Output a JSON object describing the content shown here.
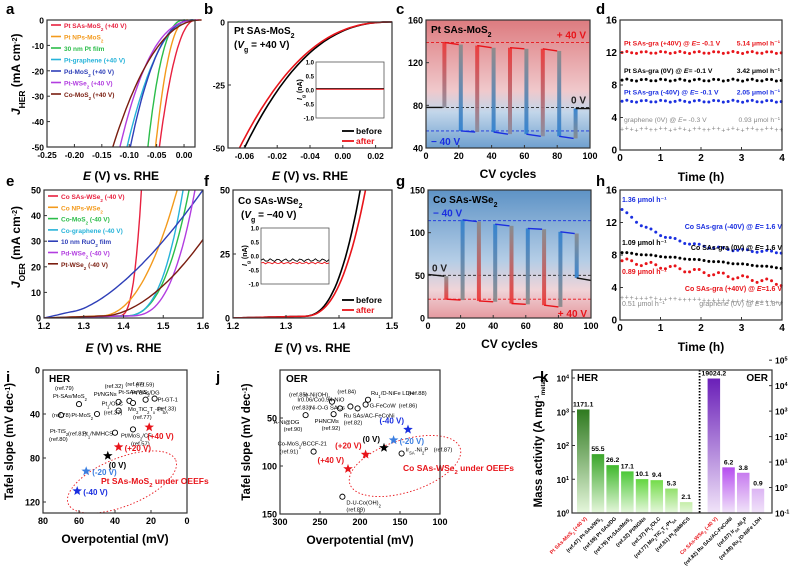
{
  "chart_data": [
    {
      "id": "a",
      "panel_letter": "a",
      "type": "line",
      "title": "",
      "xlabel": "E (V) vs. RHE",
      "ylabel": "J_HER (mA cm^-2)",
      "xlim": [
        -0.25,
        0.02
      ],
      "ylim": [
        -50,
        0
      ],
      "xticks": [
        -0.25,
        -0.2,
        -0.15,
        -0.1,
        -0.05,
        0.0
      ],
      "xtick_labels": [
        "-0.25",
        "-0.20",
        "-0.15",
        "-0.10",
        "-0.05",
        "0.00"
      ],
      "yticks": [
        0,
        -10,
        -20,
        -30,
        -40,
        -50
      ],
      "ytick_labels": [
        "0",
        "-10",
        "-20",
        "-30",
        "-40",
        "-50"
      ],
      "legend_position": "top-left",
      "series": [
        {
          "name": "Pt SAs-MoS2 (+40 V)",
          "color": "#e8213f",
          "onset": 0.01,
          "at_minus50": -0.045
        },
        {
          "name": "Pt NPs-MoS2",
          "color": "#f39a1c",
          "onset": -0.005,
          "at_minus50": -0.052
        },
        {
          "name": "30 nm Pt film",
          "color": "#2bbd4a",
          "onset": -0.01,
          "at_minus50": -0.066
        },
        {
          "name": "Pt-graphene (+40 V)",
          "color": "#26b3d9",
          "onset": 0.005,
          "at_minus50": -0.104
        },
        {
          "name": "Pd-MoS2 (+40 V)",
          "color": "#2e3fb8",
          "onset": 0.005,
          "at_minus50": -0.098
        },
        {
          "name": "Pt-WSe2 (+40 V)",
          "color": "#b23de0",
          "onset": 0.015,
          "at_minus50": -0.117
        },
        {
          "name": "Co-MoS2 (+40 V)",
          "color": "#7a1d0f",
          "onset": 0.02,
          "at_minus50": -0.13
        }
      ]
    },
    {
      "id": "b",
      "panel_letter": "b",
      "type": "line",
      "title": "Pt SAs-MoS2 (Vg = +40 V)",
      "title_line1": "Pt SAs-MoS2",
      "title_line2": "(Vg = +40 V)",
      "xlabel": "E (V) vs. RHE",
      "ylabel": "",
      "xlim": [
        -0.07,
        0.03
      ],
      "ylim": [
        -50,
        0
      ],
      "xtick_labels": [
        "-0.06",
        "-0.02",
        "-0.04",
        "0.00",
        "0.02"
      ],
      "ytick_labels": [
        "0",
        "-25",
        "-50"
      ],
      "series": [
        {
          "name": "before",
          "color": "#000000",
          "x_at_minus50": -0.06
        },
        {
          "name": "after",
          "color": "#e8141a",
          "x_at_minus50": -0.063
        }
      ],
      "inset": {
        "ylabel": "Ig (nA)",
        "ylim": [
          -1.0,
          1.0
        ],
        "ytick_labels": [
          "1.0",
          "0.5",
          "0.0",
          "-0.5",
          "-1.0"
        ],
        "before_level": 0.05,
        "after_level": 0.05
      },
      "legend_position": "bottom-right"
    },
    {
      "id": "c",
      "panel_letter": "c",
      "type": "line",
      "title": "Pt SAs-MoS2",
      "xlabel": "CV cycles",
      "ylabel": "",
      "xlim": [
        0,
        100
      ],
      "ylim": [
        40,
        160
      ],
      "xtick_labels": [
        "0",
        "20",
        "40",
        "60",
        "80",
        "100"
      ],
      "ytick_labels": [
        "40",
        "80",
        "120",
        "160"
      ],
      "reference_lines": [
        {
          "label": "+ 40 V",
          "value": 139,
          "color": "#e8141a"
        },
        {
          "label": "0 V",
          "value": 78,
          "color": "#222222"
        },
        {
          "label": "− 40 V",
          "value": 56,
          "color": "#1a2fe0"
        }
      ],
      "segments": [
        {
          "x0": 0,
          "x1": 10,
          "y0": 78,
          "y1": 78,
          "state": "0V"
        },
        {
          "x0": 10,
          "x1": 20,
          "y0": 139,
          "y1": 137,
          "state": "+40V"
        },
        {
          "x0": 20,
          "x1": 30,
          "y0": 56,
          "y1": 55,
          "state": "-40V"
        },
        {
          "x0": 30,
          "x1": 40,
          "y0": 136,
          "y1": 134,
          "state": "+40V"
        },
        {
          "x0": 40,
          "x1": 50,
          "y0": 55,
          "y1": 53,
          "state": "-40V"
        },
        {
          "x0": 50,
          "x1": 60,
          "y0": 134,
          "y1": 133,
          "state": "+40V"
        },
        {
          "x0": 60,
          "x1": 70,
          "y0": 53,
          "y1": 51,
          "state": "-40V"
        },
        {
          "x0": 70,
          "x1": 80,
          "y0": 133,
          "y1": 131,
          "state": "+40V"
        },
        {
          "x0": 80,
          "x1": 90,
          "y0": 51,
          "y1": 49,
          "state": "-40V"
        },
        {
          "x0": 90,
          "x1": 100,
          "y0": 77,
          "y1": 77,
          "state": "0V"
        }
      ]
    },
    {
      "id": "d",
      "panel_letter": "d",
      "type": "scatter",
      "xlabel": "Time (h)",
      "ylabel": "",
      "xlim": [
        0,
        4
      ],
      "ylim": [
        0,
        16
      ],
      "xtick_labels": [
        "0",
        "1",
        "2",
        "3",
        "4"
      ],
      "ytick_labels": [
        "0",
        "4",
        "8",
        "12",
        "16"
      ],
      "series": [
        {
          "name": "Pt SAs-gra (+40V) @ E= -0.1 V",
          "rate": "5.14 μmol h⁻¹",
          "color": "#e8141a",
          "level": 12.0
        },
        {
          "name": "Pt SAs-gra (0V) @ E= -0.1 V",
          "rate": "3.42 μmol h⁻¹",
          "color": "#000000",
          "level": 8.6
        },
        {
          "name": "Pt SAs-gra (-40V) @ E= -0.1 V",
          "rate": "2.05 μmol h⁻¹",
          "color": "#1a2fe0",
          "level": 6.0
        },
        {
          "name": "graphene (0V) @ E= -0.3 V",
          "rate": "0.93 μmol h⁻¹",
          "color": "#888888",
          "level": 2.6
        }
      ]
    },
    {
      "id": "e",
      "panel_letter": "e",
      "type": "line",
      "xlabel": "E (V) vs. RHE",
      "ylabel": "J_OER (mA cm^-2)",
      "xlim": [
        1.2,
        1.6
      ],
      "ylim": [
        0,
        50
      ],
      "xtick_labels": [
        "1.2",
        "1.3",
        "1.4",
        "1.5",
        "1.6"
      ],
      "ytick_labels": [
        "0",
        "10",
        "20",
        "30",
        "40",
        "50"
      ],
      "legend_position": "top-left",
      "series": [
        {
          "name": "Co SAs-WSe2 (-40 V)",
          "color": "#e8213f",
          "x_at_50": 1.445
        },
        {
          "name": "Co NPs-WSe2",
          "color": "#f39a1c",
          "x_at_50": 1.535
        },
        {
          "name": "Co-MoS2 (-40 V)",
          "color": "#2bbd4a",
          "x_at_50": 1.565
        },
        {
          "name": "Co-graphene (-40 V)",
          "color": "#26b3d9",
          "x_at_50": 1.55
        },
        {
          "name": "10 nm RuO2 film",
          "color": "#2e3fb8",
          "x_at_50": 1.6
        },
        {
          "name": "Pd-WSe2 (-40 V)",
          "color": "#b23de0",
          "x_at_50": 1.58
        },
        {
          "name": "Pt-WSe2 (-40 V)",
          "color": "#7a1d0f",
          "x_at_50": 1.68
        }
      ]
    },
    {
      "id": "f",
      "panel_letter": "f",
      "type": "line",
      "title": "Co SAs-WSe2 (Vg = −40 V)",
      "title_line1": "Co SAs-WSe2",
      "title_line2": "(Vg = −40 V)",
      "xlabel": "E (V) vs. RHE",
      "ylabel": "",
      "xlim": [
        1.2,
        1.5
      ],
      "ylim": [
        0,
        50
      ],
      "xtick_labels": [
        "1.2",
        "1.3",
        "1.4",
        "1.5"
      ],
      "ytick_labels": [
        "0",
        "25",
        "50"
      ],
      "series": [
        {
          "name": "before",
          "color": "#000000",
          "x_at_50": 1.44
        },
        {
          "name": "after",
          "color": "#e8141a",
          "x_at_50": 1.45
        }
      ],
      "inset": {
        "ylabel": "Ig (nA)",
        "ylim": [
          -1.0,
          1.0
        ],
        "ytick_labels": [
          "1.0",
          "0.5",
          "0.0",
          "-0.5",
          "-1.0"
        ],
        "before_level": -0.15,
        "after_level": -0.25
      },
      "legend_position": "bottom-right"
    },
    {
      "id": "g",
      "panel_letter": "g",
      "type": "line",
      "title": "Co SAs-WSe2",
      "xlabel": "CV cycles",
      "ylabel": "",
      "xlim": [
        0,
        100
      ],
      "ylim": [
        0,
        150
      ],
      "xtick_labels": [
        "0",
        "20",
        "40",
        "60",
        "80",
        "100"
      ],
      "ytick_labels": [
        "0",
        "50",
        "100",
        "150"
      ],
      "reference_lines": [
        {
          "label": "− 40 V",
          "value": 114,
          "color": "#1a2fe0"
        },
        {
          "label": "0 V",
          "value": 50,
          "color": "#222222"
        },
        {
          "label": "+ 40 V",
          "value": 22,
          "color": "#e8141a"
        }
      ],
      "segments": [
        {
          "x0": 0,
          "x1": 10,
          "y0": 51,
          "y1": 49,
          "state": "0V"
        },
        {
          "x0": 10,
          "x1": 20,
          "y0": 22,
          "y1": 21,
          "state": "+40V"
        },
        {
          "x0": 20,
          "x1": 30,
          "y0": 115,
          "y1": 113,
          "state": "-40V"
        },
        {
          "x0": 30,
          "x1": 40,
          "y0": 20,
          "y1": 19,
          "state": "+40V"
        },
        {
          "x0": 40,
          "x1": 50,
          "y0": 110,
          "y1": 108,
          "state": "-40V"
        },
        {
          "x0": 50,
          "x1": 60,
          "y0": 17,
          "y1": 16,
          "state": "+40V"
        },
        {
          "x0": 60,
          "x1": 70,
          "y0": 105,
          "y1": 104,
          "state": "-40V"
        },
        {
          "x0": 70,
          "x1": 80,
          "y0": 15,
          "y1": 13,
          "state": "+40V"
        },
        {
          "x0": 80,
          "x1": 90,
          "y0": 101,
          "y1": 99,
          "state": "-40V"
        },
        {
          "x0": 90,
          "x1": 100,
          "y0": 47,
          "y1": 44,
          "state": "0V"
        }
      ]
    },
    {
      "id": "h",
      "panel_letter": "h",
      "type": "scatter",
      "xlabel": "Time (h)",
      "ylabel": "",
      "xlim": [
        0,
        4
      ],
      "ylim": [
        0,
        16
      ],
      "xtick_labels": [
        "0",
        "1",
        "2",
        "3",
        "4"
      ],
      "ytick_labels": [
        "0",
        "4",
        "8",
        "12",
        "16"
      ],
      "series": [
        {
          "name": "Co SAs-gra (-40V) @ E= 1.6 V",
          "rate": "1.36 μmol h⁻¹",
          "color": "#1a2fe0",
          "start": 13.6,
          "end": 8.2
        },
        {
          "name": "Co SAs-gra (0V) @ E= 1.6 V",
          "rate": "1.09 μmol h⁻¹",
          "color": "#000000",
          "start": 8.3,
          "end": 6.4
        },
        {
          "name": "Co SAs-gra (+40V) @ E=1.6 V",
          "rate": "0.89 μmol h⁻¹",
          "color": "#e8141a",
          "start": 7.3,
          "end": 4.5
        },
        {
          "name": "graphene (0V) @ E= 1.8 V",
          "rate": "0.51 μmol h⁻¹",
          "color": "#888888",
          "start": 2.8,
          "end": 2.2
        }
      ]
    },
    {
      "id": "i",
      "panel_letter": "i",
      "type": "scatter",
      "title": "HER",
      "xlabel": "Overpotential (mV)",
      "ylabel": "Tafel slope (mV dec⁻¹)",
      "xlim": [
        80,
        0
      ],
      "ylim": [
        0,
        130
      ],
      "xtick_labels": [
        "80",
        "60",
        "40",
        "20",
        "0"
      ],
      "ytick_labels": [
        "0",
        "40",
        "80",
        "120"
      ],
      "references": [
        {
          "label": "(ref.80)",
          "name": "Pt-TiS2",
          "x": 70,
          "y": 41
        },
        {
          "label": "(ref.79)",
          "name": "Pt-SAs/MoS2",
          "x": 60,
          "y": 31
        },
        {
          "label": "(ref.78)",
          "name": "Pt-MoS2",
          "x": 50,
          "y": 40
        },
        {
          "label": "(ref.32)",
          "name": "Pt/NGNs",
          "x": 38,
          "y": 29
        },
        {
          "label": "(ref.37)",
          "name": "Pt1/OLC",
          "x": 38,
          "y": 37
        },
        {
          "label": "(ref.81)",
          "name": "Pt1/NMHCS",
          "x": 40,
          "y": 57
        },
        {
          "label": "(ref.47)",
          "name": "Pt-SAs/WS2",
          "x": 32,
          "y": 28
        },
        {
          "label": "(ref.77)",
          "name": "Mo2TiC2Tx-PtSA",
          "x": 30,
          "y": 30
        },
        {
          "label": "(ref.59)",
          "name": "Pt SAs/DG",
          "x": 23,
          "y": 27
        },
        {
          "label": "(ref.33)",
          "name": "Pt-GT-1",
          "x": 18,
          "y": 26
        },
        {
          "label": "(ref.57)",
          "name": "Pt/MoS2/CF",
          "x": 30,
          "y": 54
        }
      ],
      "this_work": [
        {
          "label": "(+40 V)",
          "x": 21,
          "y": 52,
          "color": "#e8141a"
        },
        {
          "label": "(+20 V)",
          "x": 38,
          "y": 70,
          "color": "#e8141a"
        },
        {
          "label": "(0 V)",
          "x": 44,
          "y": 78,
          "color": "#000000"
        },
        {
          "label": "(-20 V)",
          "x": 56,
          "y": 92,
          "color": "#3a7ee0"
        },
        {
          "label": "(-40 V)",
          "x": 61,
          "y": 110,
          "color": "#1a2fe0"
        }
      ],
      "annotation": "Pt SAs-MoS2 under OEEFs"
    },
    {
      "id": "j",
      "panel_letter": "j",
      "type": "scatter",
      "title": "OER",
      "xlabel": "Overpotential (mV)",
      "ylabel": "Tafel slope (mV dec⁻¹)",
      "xlim": [
        300,
        100
      ],
      "ylim": [
        0,
        150
      ],
      "xtick_labels": [
        "300",
        "250",
        "200",
        "150",
        "100"
      ],
      "ytick_labels": [
        "50",
        "100",
        "150"
      ],
      "references": [
        {
          "label": "(ref.90)",
          "name": "A-Ni@DG",
          "x": 268,
          "y": 47
        },
        {
          "label": "(ref.85)",
          "name": "w-Ni(OH)2",
          "x": 235,
          "y": 33
        },
        {
          "label": "(ref.83)",
          "name": "Ni-O-G SACs",
          "x": 225,
          "y": 40
        },
        {
          "label": "(ref.92)",
          "name": "PHNCMs",
          "x": 233,
          "y": 46
        },
        {
          "label": "(ref.84)",
          "name": "Ir0.06/Co0.94-NiO",
          "x": 212,
          "y": 38
        },
        {
          "label": "(ref.82)",
          "name": "Ru SAs/AC-FeCoNi",
          "x": 203,
          "y": 40
        },
        {
          "label": "(ref.88)",
          "name": "Ru1/D-NiFe LDH",
          "x": 190,
          "y": 31
        },
        {
          "label": "(ref.86)",
          "name": "G-FeCoW",
          "x": 193,
          "y": 36
        },
        {
          "label": "(ref.91)",
          "name": "Co-MoS2/BCCF-21",
          "x": 258,
          "y": 85
        },
        {
          "label": "(ref.87)",
          "name": "IrSA-Ni2P",
          "x": 148,
          "y": 87
        },
        {
          "label": "(ref.89)",
          "name": "D-U-Co(OH)2",
          "x": 222,
          "y": 132
        }
      ],
      "this_work": [
        {
          "label": "(-40 V)",
          "x": 140,
          "y": 62,
          "color": "#1a2fe0"
        },
        {
          "label": "(-20 V)",
          "x": 158,
          "y": 73,
          "color": "#3a7ee0"
        },
        {
          "label": "(0 V)",
          "x": 170,
          "y": 81,
          "color": "#000000"
        },
        {
          "label": "(+20 V)",
          "x": 193,
          "y": 88,
          "color": "#e8141a"
        },
        {
          "label": "(+40 V)",
          "x": 215,
          "y": 103,
          "color": "#e8141a"
        }
      ],
      "annotation": "Co SAs-WSe2 under OEEFs"
    },
    {
      "id": "k",
      "panel_letter": "k",
      "type": "bar",
      "ylabel": "Mass activity (A mg⁻¹metal)",
      "yscale": "log",
      "left_ylim": [
        1,
        10000
      ],
      "right_ylim": [
        0.1,
        100000
      ],
      "left_tick_labels": [
        "10⁰",
        "10¹",
        "10²",
        "10³",
        "10⁴"
      ],
      "right_tick_labels": [
        "10⁻¹",
        "10⁰",
        "10¹",
        "10²",
        "10³",
        "10⁴",
        "10⁵"
      ],
      "groups": [
        {
          "name": "HER",
          "axis": "left",
          "categories": [
            "Pt SAs-MoS2 (+40 V)",
            "(ref.47) Pt-SAs/WS2",
            "(ref.59) Pt SAs/DG",
            "(ref.79) Pt-SAs/MoS2",
            "(ref.32) Pt/NGNs",
            "(ref.37) Pt1/OLC",
            "(ref.77) Mo2TiC2Tx-PtSA",
            "(ref.81) Pt1/NMHCS"
          ],
          "values": [
            1171.1,
            55.5,
            26.2,
            17.1,
            10.1,
            9.4,
            5.3,
            2.1
          ],
          "value_labels": [
            "1171.1",
            "55.5",
            "26.2",
            "17.1",
            "10.1",
            "9.4",
            "5.3",
            "2.1"
          ],
          "highlight_index": 0,
          "colors": [
            "#2f7a1f",
            "#3aa52a",
            "#3fb82c",
            "#4cc838",
            "#62d63f",
            "#74dc4a",
            "#93e06c",
            "#c5eea8"
          ]
        },
        {
          "name": "OER",
          "axis": "right",
          "categories": [
            "Co SAs-WSe2 (-40 V)",
            "(ref.82) Ru SAs/AC-FeCoNi",
            "(ref.87) IrSA-Ni2P",
            "(ref.88) Ru1/D-NiFe LDH"
          ],
          "values": [
            19024.2,
            6.2,
            3.8,
            0.9
          ],
          "value_labels": [
            "19024.2",
            "6.2",
            "3.8",
            "0.9"
          ],
          "highlight_index": 0,
          "colors": [
            "#6a1fb8",
            "#b64df0",
            "#c77bef",
            "#dcb4f4"
          ]
        }
      ]
    }
  ]
}
